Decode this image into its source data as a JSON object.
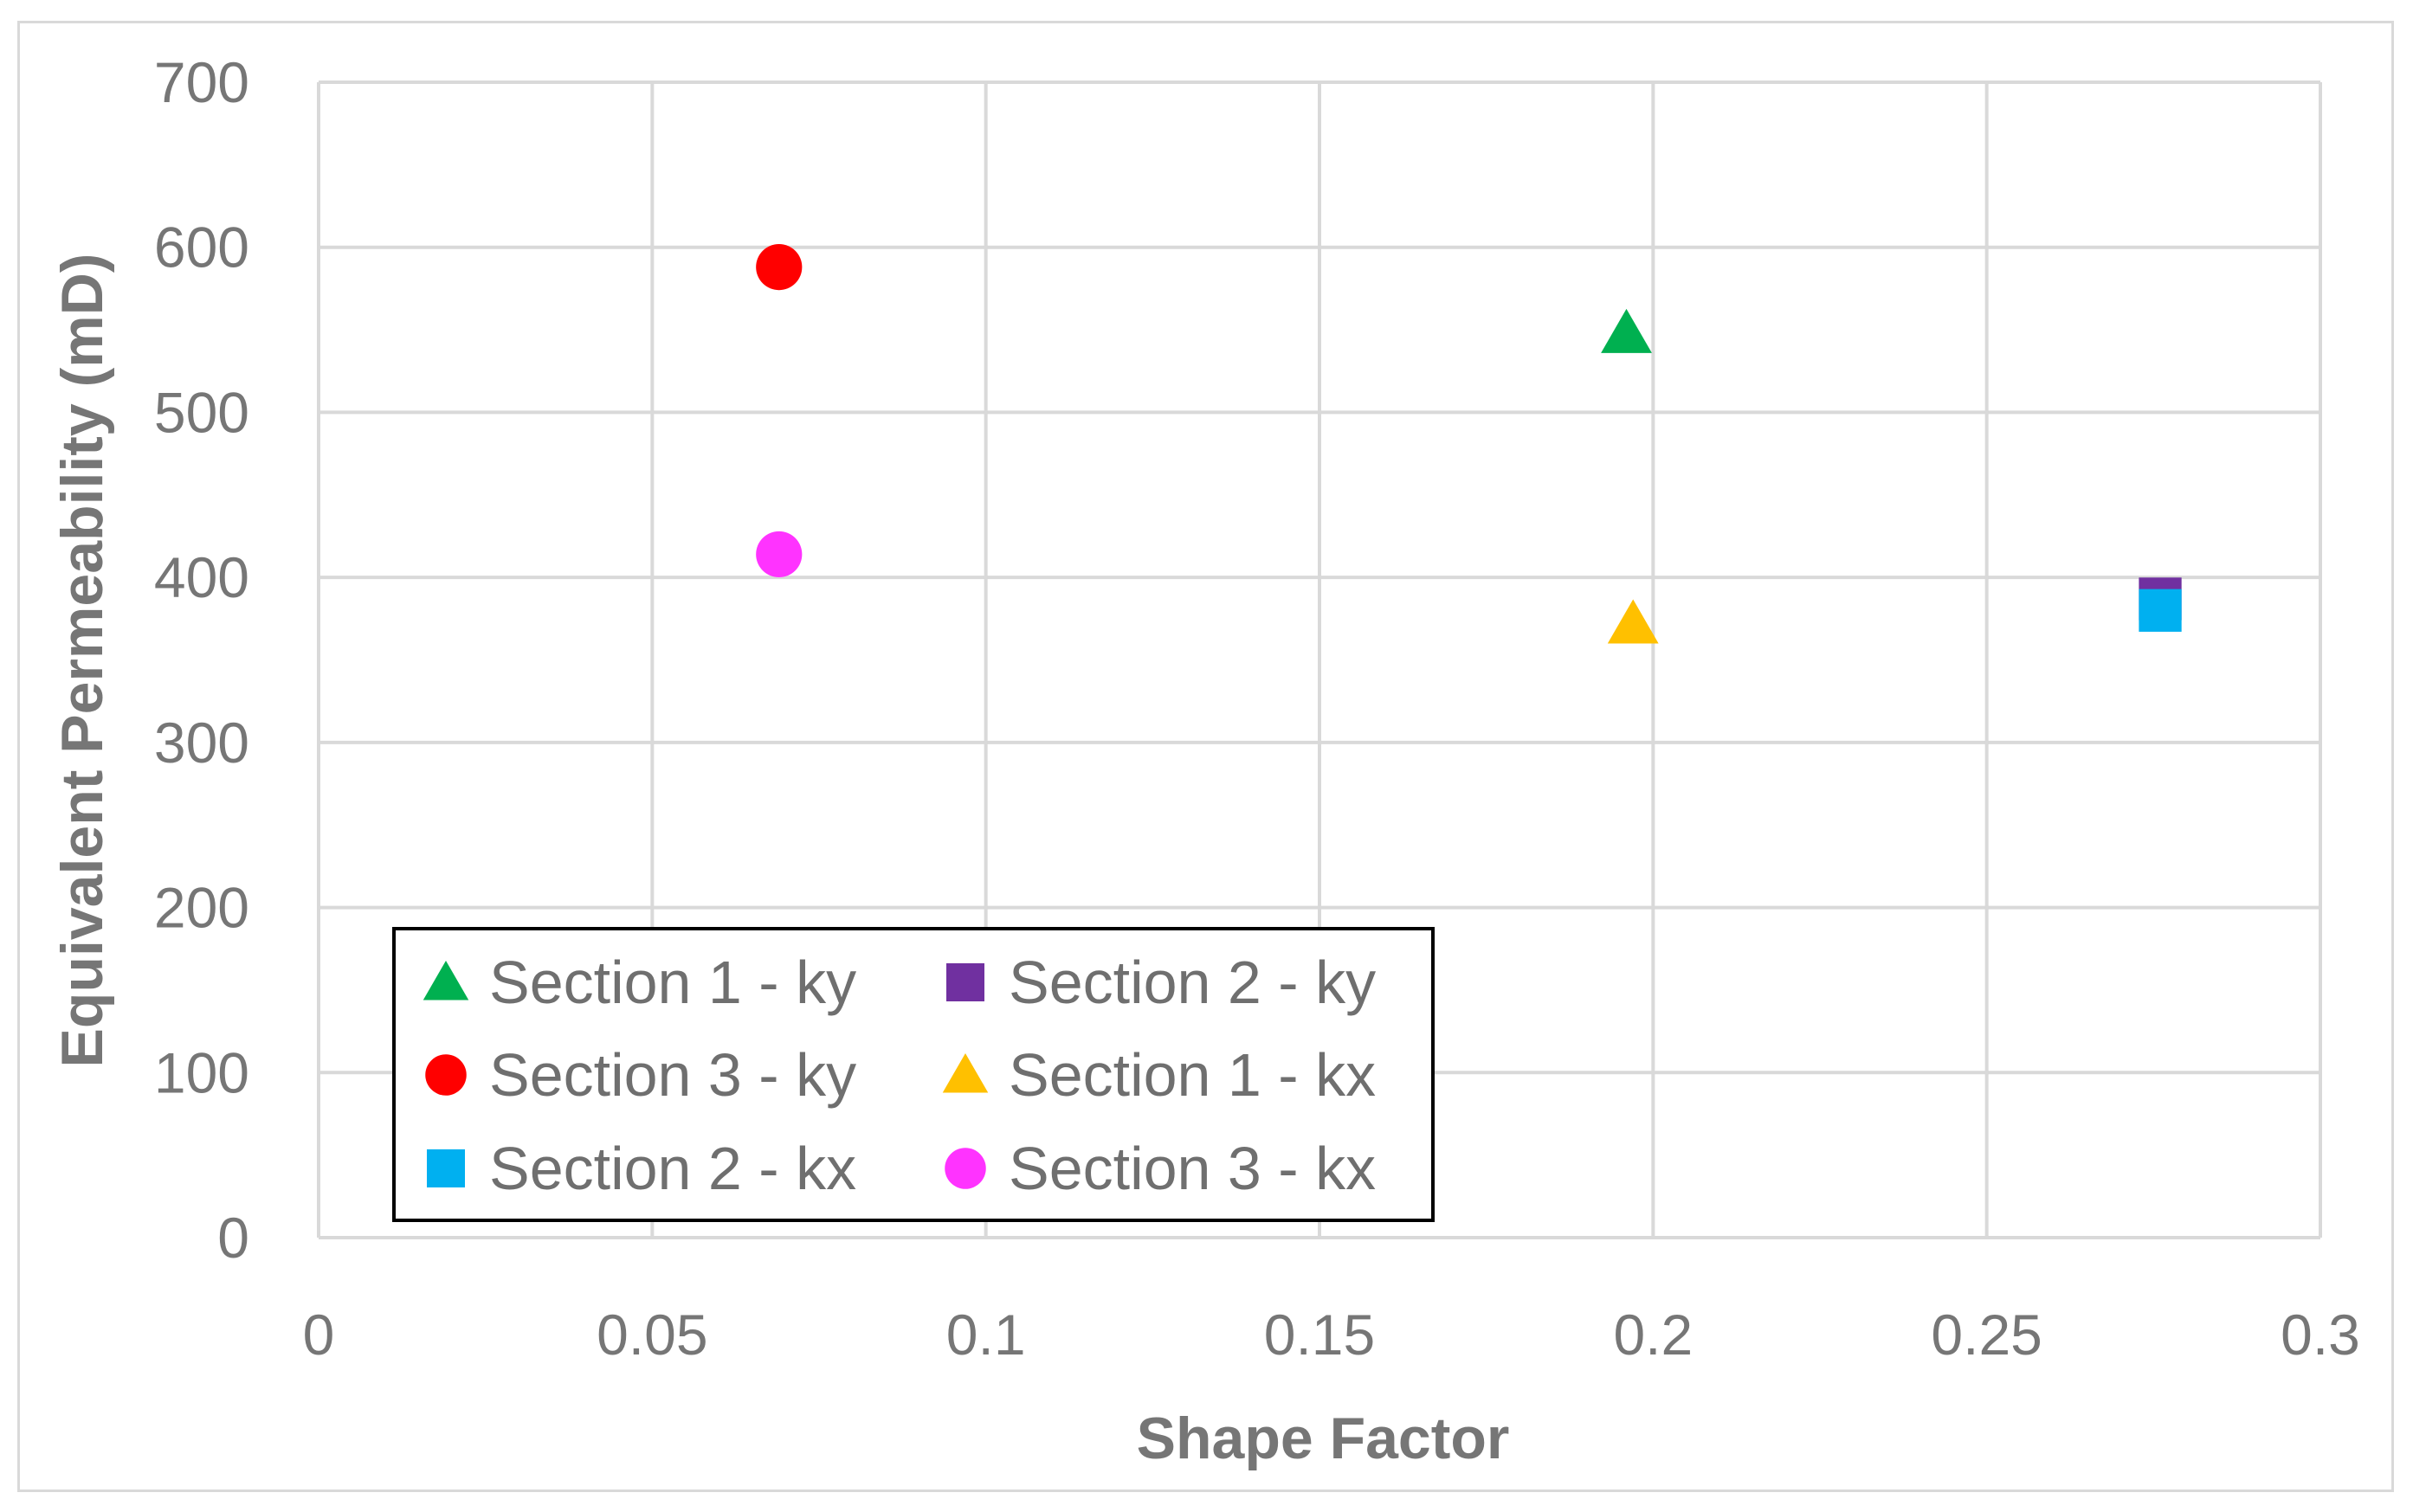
{
  "chart_data": {
    "type": "scatter",
    "title": "",
    "xlabel": "Shape Factor",
    "ylabel": "Equivalent Permeability (mD)",
    "xlim": [
      0,
      0.3
    ],
    "ylim": [
      0,
      700
    ],
    "x_ticks": [
      "0",
      "0.05",
      "0.1",
      "0.15",
      "0.2",
      "0.25",
      "0.3"
    ],
    "y_ticks": [
      "0",
      "100",
      "200",
      "300",
      "400",
      "500",
      "600",
      "700"
    ],
    "grid": true,
    "legend_position": "bottom-left",
    "series": [
      {
        "name": "Section 1 - ky",
        "marker": "triangle",
        "color": "#00b050",
        "points": [
          {
            "x": 0.196,
            "y": 548
          }
        ]
      },
      {
        "name": "Section 2 - ky",
        "marker": "square",
        "color": "#7030a0",
        "points": [
          {
            "x": 0.276,
            "y": 387
          }
        ]
      },
      {
        "name": "Section 3 - ky",
        "marker": "circle",
        "color": "#ff0000",
        "points": [
          {
            "x": 0.069,
            "y": 588
          }
        ]
      },
      {
        "name": "Section 1 - kx",
        "marker": "triangle",
        "color": "#ffc000",
        "points": [
          {
            "x": 0.197,
            "y": 372
          }
        ]
      },
      {
        "name": "Section 2 - kx",
        "marker": "square",
        "color": "#00b0f0",
        "points": [
          {
            "x": 0.276,
            "y": 380
          }
        ]
      },
      {
        "name": "Section 3 - kx",
        "marker": "circle",
        "color": "#ff33ff",
        "points": [
          {
            "x": 0.069,
            "y": 414
          }
        ]
      }
    ]
  }
}
